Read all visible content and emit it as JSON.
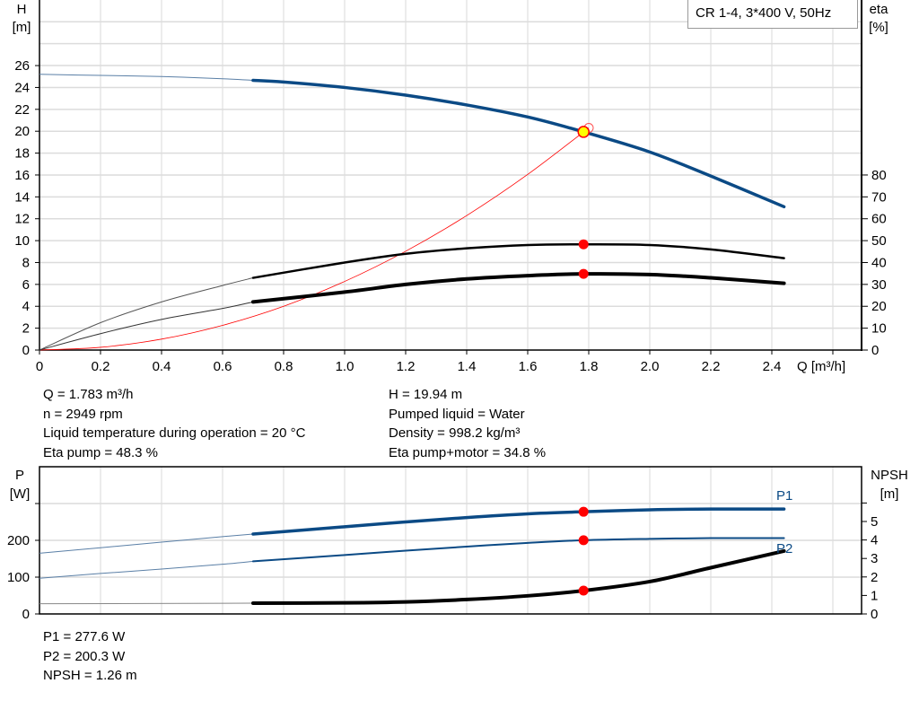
{
  "chart_data": [
    {
      "type": "line",
      "legend": "CR 1-4, 3*400 V, 50Hz",
      "xlabel": "Q [m³/h]",
      "ylabel": [
        "H",
        "[m]"
      ],
      "y2label": [
        "eta",
        "[%]"
      ],
      "xlim": [
        0,
        2.69
      ],
      "ylim": [
        0,
        32
      ],
      "y2lim": [
        0,
        160
      ],
      "grid": true,
      "xticks": [
        "0",
        "0.2",
        "0.4",
        "0.6",
        "0.8",
        "1.0",
        "1.2",
        "1.4",
        "1.6",
        "1.8",
        "2.0",
        "2.2",
        "2.4"
      ],
      "yticks": [
        "0",
        "2",
        "4",
        "6",
        "8",
        "10",
        "12",
        "14",
        "16",
        "18",
        "20",
        "22",
        "24",
        "26"
      ],
      "y2ticks": [
        "0",
        "10",
        "20",
        "30",
        "40",
        "50",
        "60",
        "70",
        "80"
      ],
      "series": [
        {
          "axis": "H",
          "color": "#0b4a85",
          "thin_until": 0.7,
          "x": [
            0,
            0.2,
            0.4,
            0.6,
            0.7,
            0.8,
            1.0,
            1.2,
            1.4,
            1.6,
            1.783,
            2.0,
            2.2,
            2.44
          ],
          "y": [
            25.2,
            25.1,
            25.0,
            24.8,
            24.65,
            24.5,
            24.0,
            23.3,
            22.4,
            21.3,
            19.94,
            18.1,
            15.9,
            13.1
          ]
        },
        {
          "axis": "eta",
          "color": "#000000",
          "thin_until": 0.7,
          "x": [
            0,
            0.2,
            0.4,
            0.6,
            0.7,
            1.0,
            1.2,
            1.4,
            1.6,
            1.783,
            2.0,
            2.2,
            2.44
          ],
          "y": [
            0,
            12.5,
            22,
            29.5,
            33,
            40,
            44,
            46.5,
            48,
            48.3,
            48,
            46,
            42
          ]
        },
        {
          "axis": "eta",
          "color": "#000000",
          "thin_until": 0.7,
          "thick": true,
          "x": [
            0,
            0.2,
            0.4,
            0.6,
            0.7,
            1.0,
            1.2,
            1.4,
            1.6,
            1.783,
            2.0,
            2.2,
            2.44
          ],
          "y": [
            0,
            7.5,
            14,
            19,
            22,
            26.5,
            30,
            32.5,
            34,
            34.8,
            34.5,
            33,
            30.5
          ]
        },
        {
          "axis": "H",
          "color": "#ff0000",
          "system_curve": true,
          "x": [
            0,
            0.2,
            0.4,
            0.6,
            0.8,
            1.0,
            1.2,
            1.4,
            1.6,
            1.8
          ],
          "y": [
            0,
            0.25,
            1.0,
            2.26,
            4.0,
            6.27,
            9.03,
            12.29,
            16.05,
            20.3
          ]
        }
      ],
      "duty_point": {
        "Q": 1.783,
        "H": 19.94,
        "eta_pump": 48.3,
        "eta_pump_motor": 34.8
      }
    },
    {
      "type": "line",
      "ylabel": [
        "P",
        "[W]"
      ],
      "y2label": [
        "NPSH",
        "[m]"
      ],
      "xlim": [
        0,
        2.69
      ],
      "ylim": [
        0,
        405
      ],
      "y2lim": [
        0,
        8
      ],
      "grid": true,
      "yticks": [
        "0",
        "100",
        "200"
      ],
      "y2ticks": [
        "0",
        "1",
        "2",
        "3",
        "4",
        "5"
      ],
      "series": [
        {
          "name": "P1",
          "axis": "P",
          "color": "#0b4a85",
          "thick": true,
          "thin_until": 0.7,
          "x": [
            0,
            0.2,
            0.4,
            0.6,
            0.7,
            1.0,
            1.2,
            1.4,
            1.6,
            1.783,
            2.0,
            2.2,
            2.44
          ],
          "y": [
            165,
            180,
            195,
            210,
            217,
            237,
            250,
            262,
            272,
            277.6,
            283,
            285,
            285
          ]
        },
        {
          "name": "P2",
          "axis": "P",
          "color": "#0b4a85",
          "thin_until": 0.7,
          "x": [
            0,
            0.2,
            0.4,
            0.6,
            0.7,
            1.0,
            1.2,
            1.4,
            1.6,
            1.783,
            2.0,
            2.2,
            2.44
          ],
          "y": [
            97,
            110,
            122,
            135,
            143,
            160,
            172,
            183,
            193,
            200.3,
            204,
            206,
            206
          ]
        },
        {
          "axis": "NPSH",
          "color": "#000000",
          "thick": true,
          "thin_until": 0.7,
          "x": [
            0,
            0.7,
            1.0,
            1.2,
            1.4,
            1.6,
            1.783,
            2.0,
            2.2,
            2.44
          ],
          "y": [
            0.55,
            0.58,
            0.6,
            0.65,
            0.78,
            0.98,
            1.26,
            1.75,
            2.5,
            3.4
          ]
        }
      ],
      "duty_point": {
        "Q": 1.783,
        "P1": 277.6,
        "P2": 200.3,
        "NPSH": 1.26
      }
    }
  ],
  "info_top_left": [
    "Q = 1.783 m³/h",
    "n = 2949 rpm",
    "Liquid temperature during operation = 20 °C",
    "Eta pump = 48.3 %"
  ],
  "info_top_right": [
    "H = 19.94 m",
    "Pumped liquid = Water",
    "Density = 998.2 kg/m³",
    "Eta pump+motor = 34.8 %"
  ],
  "info_bottom": [
    "P1 = 277.6 W",
    "P2 = 200.3 W",
    "NPSH = 1.26 m"
  ],
  "colors": {
    "curve_blue": "#0b4a85",
    "duty_marker": "#ff0000",
    "duty_highlight": "#ffff00",
    "grid": "#d9d9d9"
  }
}
